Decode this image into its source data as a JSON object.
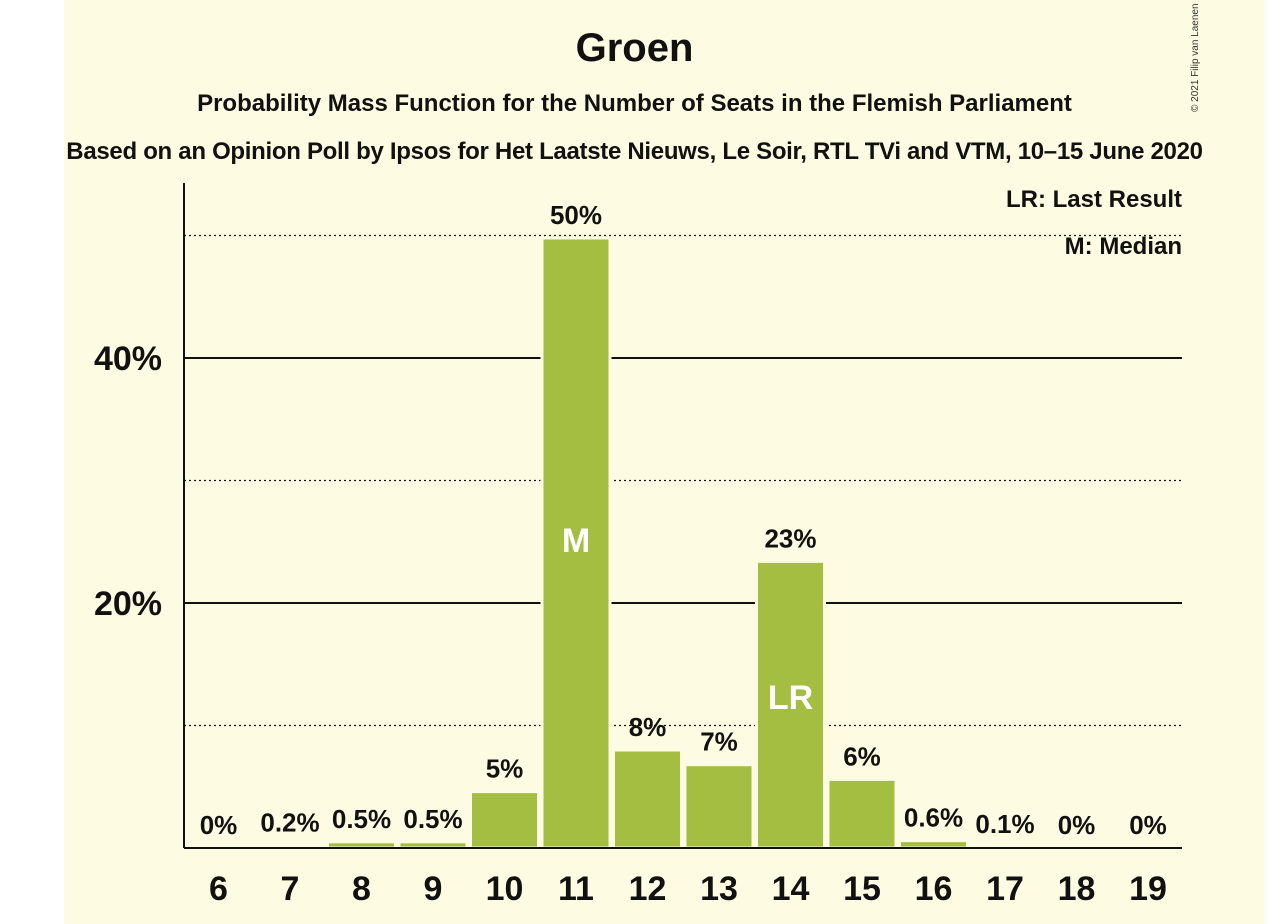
{
  "header": {
    "title": "Groen",
    "subtitle": "Probability Mass Function for the Number of Seats in the Flemish Parliament",
    "subtitle2": "Based on an Opinion Poll by Ipsos for Het Laatste Nieuws, Le Soir, RTL TVi and VTM, 10–15 June 2020",
    "copyright": "© 2021 Filip van Laenen"
  },
  "legend": {
    "last_result": "LR: Last Result",
    "median": "M: Median"
  },
  "colors": {
    "background": "#fdfbe1",
    "bar": "#a3be41",
    "text": "#111111"
  },
  "chart_data": {
    "type": "bar",
    "categories": [
      "6",
      "7",
      "8",
      "9",
      "10",
      "11",
      "12",
      "13",
      "14",
      "15",
      "16",
      "17",
      "18",
      "19"
    ],
    "values": [
      0,
      0.2,
      0.5,
      0.5,
      4.6,
      49.8,
      8.0,
      6.8,
      23.4,
      5.6,
      0.6,
      0.1,
      0,
      0
    ],
    "value_labels": [
      "0%",
      "0.2%",
      "0.5%",
      "0.5%",
      "5%",
      "50%",
      "8%",
      "7%",
      "23%",
      "6%",
      "0.6%",
      "0.1%",
      "0%",
      "0%"
    ],
    "bar_markers": {
      "11": "M",
      "14": "LR"
    },
    "ylim": [
      0,
      54
    ],
    "yticks": [
      20,
      40
    ],
    "ytick_labels": [
      "20%",
      "40%"
    ],
    "gridlines_solid": [
      20,
      40
    ],
    "gridlines_dotted": [
      10,
      30,
      50
    ],
    "xlabel": "",
    "ylabel": ""
  }
}
